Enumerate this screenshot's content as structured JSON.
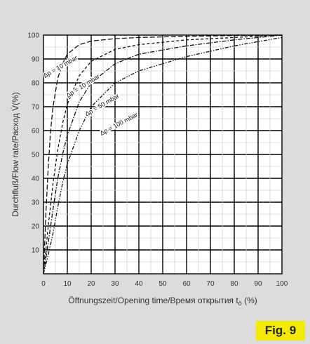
{
  "figure": {
    "badge": "Fig. 9"
  },
  "chart_data": {
    "type": "line",
    "title": "",
    "xlabel": "Öffnungszeit/Opening time/Время открытия t",
    "xlabel_subscript": "ö",
    "xlabel_unit": " (%)",
    "ylabel": "Durchfluß/Flow rate/Расход V̇(%)",
    "xlim": [
      0,
      100
    ],
    "ylim": [
      0,
      100
    ],
    "xticks": [
      0,
      10,
      20,
      30,
      40,
      50,
      60,
      70,
      80,
      90,
      100
    ],
    "yticks": [
      10,
      20,
      30,
      40,
      50,
      60,
      70,
      80,
      90,
      100
    ],
    "grid": true,
    "legend": "none",
    "series": [
      {
        "name": "Δp = 10 mbar",
        "style": "dashed-coarse",
        "x": [
          0,
          1,
          2,
          3,
          4,
          6,
          8,
          10,
          15,
          20,
          30,
          40,
          60,
          80,
          100
        ],
        "y": [
          0,
          25,
          45,
          60,
          70,
          82,
          88,
          92,
          96,
          97.5,
          98.5,
          99,
          99.5,
          99.8,
          100
        ]
      },
      {
        "name": "Δp = 10 mbar",
        "style": "dashed",
        "x": [
          0,
          2,
          4,
          6,
          8,
          10,
          15,
          20,
          30,
          40,
          60,
          80,
          100
        ],
        "y": [
          0,
          20,
          38,
          52,
          63,
          71,
          83,
          89,
          94,
          96,
          98,
          99,
          100
        ]
      },
      {
        "name": "Δp = 50 mbar",
        "style": "dash-dot",
        "x": [
          0,
          2,
          4,
          6,
          8,
          10,
          15,
          20,
          30,
          40,
          60,
          80,
          100
        ],
        "y": [
          0,
          13,
          27,
          40,
          50,
          58,
          72,
          80,
          88,
          92,
          95.5,
          98,
          100
        ]
      },
      {
        "name": "Δp = 100 mbar",
        "style": "dash-dot-dot",
        "x": [
          0,
          2,
          4,
          6,
          8,
          10,
          15,
          20,
          30,
          40,
          60,
          80,
          100
        ],
        "y": [
          0,
          8,
          17,
          28,
          38,
          46,
          60,
          70,
          80,
          85,
          91,
          95.5,
          99
        ]
      }
    ]
  }
}
